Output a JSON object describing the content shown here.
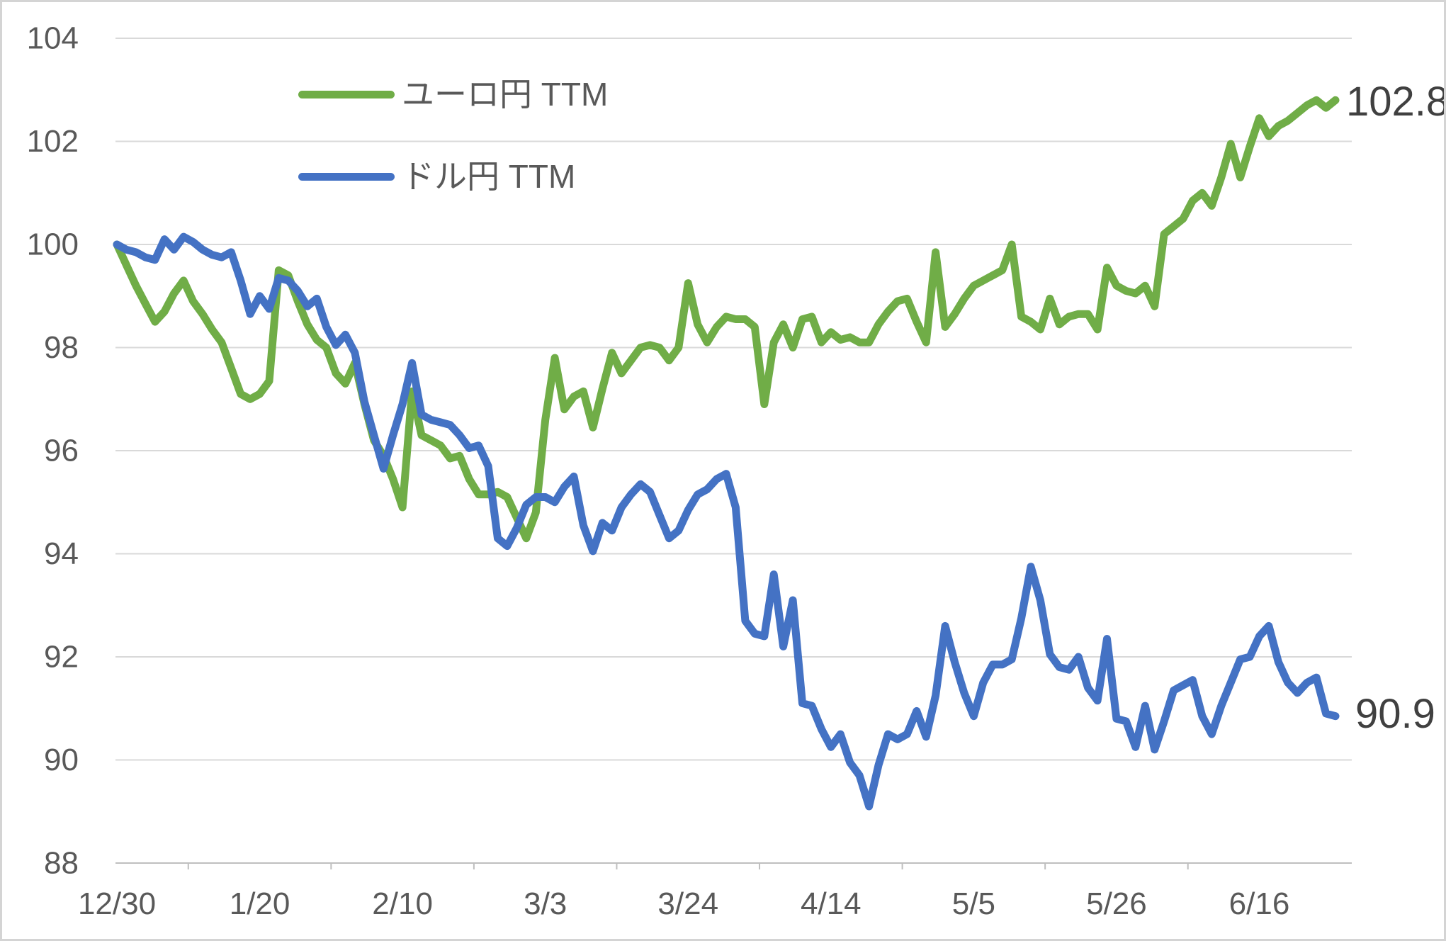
{
  "chart_data": {
    "type": "line",
    "title": "",
    "xlabel": "",
    "ylabel": "",
    "ylim": [
      88,
      104
    ],
    "y_ticks": [
      88,
      90,
      92,
      94,
      96,
      98,
      100,
      102,
      104
    ],
    "x_tick_labels": [
      "12/30",
      "1/20",
      "2/10",
      "3/3",
      "3/24",
      "4/14",
      "5/5",
      "5/26",
      "6/16"
    ],
    "x_tick_interval_points": 15,
    "grid": "horizontal-only",
    "legend_position": "inside-top-left",
    "point_count": 129,
    "series": [
      {
        "name": "ユーロ円 TTM",
        "color": "#70ad47",
        "end_label": "102.8",
        "values": [
          100.0,
          99.6,
          99.2,
          98.85,
          98.5,
          98.7,
          99.05,
          99.3,
          98.9,
          98.65,
          98.35,
          98.1,
          97.6,
          97.1,
          97.0,
          97.1,
          97.35,
          99.5,
          99.4,
          98.9,
          98.45,
          98.15,
          98.0,
          97.5,
          97.3,
          97.7,
          96.9,
          96.2,
          95.9,
          95.45,
          94.9,
          97.15,
          96.3,
          96.2,
          96.1,
          95.85,
          95.9,
          95.45,
          95.15,
          95.15,
          95.2,
          95.1,
          94.7,
          94.3,
          94.8,
          96.6,
          97.8,
          96.8,
          97.05,
          97.15,
          96.45,
          97.2,
          97.9,
          97.5,
          97.75,
          98.0,
          98.05,
          98.0,
          97.75,
          98.0,
          99.25,
          98.45,
          98.1,
          98.4,
          98.6,
          98.55,
          98.55,
          98.4,
          96.9,
          98.1,
          98.45,
          98.0,
          98.55,
          98.6,
          98.1,
          98.3,
          98.15,
          98.2,
          98.1,
          98.1,
          98.45,
          98.7,
          98.9,
          98.95,
          98.5,
          98.1,
          99.85,
          98.4,
          98.65,
          98.95,
          99.2,
          99.3,
          99.4,
          99.5,
          100.0,
          98.6,
          98.5,
          98.35,
          98.95,
          98.45,
          98.6,
          98.65,
          98.65,
          98.35,
          99.55,
          99.2,
          99.1,
          99.05,
          99.2,
          98.8,
          100.2,
          100.35,
          100.5,
          100.85,
          101.0,
          100.75,
          101.3,
          101.95,
          101.3,
          101.9,
          102.45,
          102.1,
          102.3,
          102.4,
          102.55,
          102.7,
          102.8,
          102.65,
          102.8
        ]
      },
      {
        "name": "ドル円 TTM",
        "color": "#4472c4",
        "end_label": "90.9",
        "values": [
          100.0,
          99.9,
          99.85,
          99.75,
          99.7,
          100.1,
          99.9,
          100.15,
          100.05,
          99.9,
          99.8,
          99.75,
          99.85,
          99.3,
          98.65,
          99.0,
          98.75,
          99.35,
          99.3,
          99.1,
          98.8,
          98.95,
          98.4,
          98.05,
          98.25,
          97.9,
          96.95,
          96.3,
          95.65,
          96.3,
          96.9,
          97.7,
          96.7,
          96.6,
          96.55,
          96.5,
          96.3,
          96.05,
          96.1,
          95.7,
          94.3,
          94.15,
          94.5,
          94.95,
          95.1,
          95.1,
          95.0,
          95.3,
          95.5,
          94.55,
          94.05,
          94.6,
          94.45,
          94.9,
          95.15,
          95.35,
          95.2,
          94.75,
          94.3,
          94.45,
          94.85,
          95.15,
          95.25,
          95.45,
          95.55,
          94.9,
          92.7,
          92.45,
          92.4,
          93.6,
          92.2,
          93.1,
          91.1,
          91.05,
          90.6,
          90.25,
          90.5,
          89.95,
          89.7,
          89.1,
          89.9,
          90.5,
          90.4,
          90.5,
          90.95,
          90.45,
          91.25,
          92.6,
          91.9,
          91.3,
          90.85,
          91.5,
          91.85,
          91.85,
          91.95,
          92.75,
          93.75,
          93.1,
          92.05,
          91.8,
          91.75,
          92.0,
          91.4,
          91.15,
          92.35,
          90.8,
          90.75,
          90.25,
          91.05,
          90.2,
          90.75,
          91.35,
          91.45,
          91.55,
          90.85,
          90.5,
          91.05,
          91.5,
          91.95,
          92.0,
          92.4,
          92.6,
          91.9,
          91.5,
          91.3,
          91.5,
          91.6,
          90.9,
          90.85
        ]
      }
    ]
  },
  "colors": {
    "background": "#ffffff",
    "border": "#d4d4d4",
    "gridline": "#d9d9d9",
    "axis_line": "#bfbfbf",
    "tick_mark": "#bfbfbf",
    "tick_label": "#595959",
    "end_label": "#404040"
  }
}
